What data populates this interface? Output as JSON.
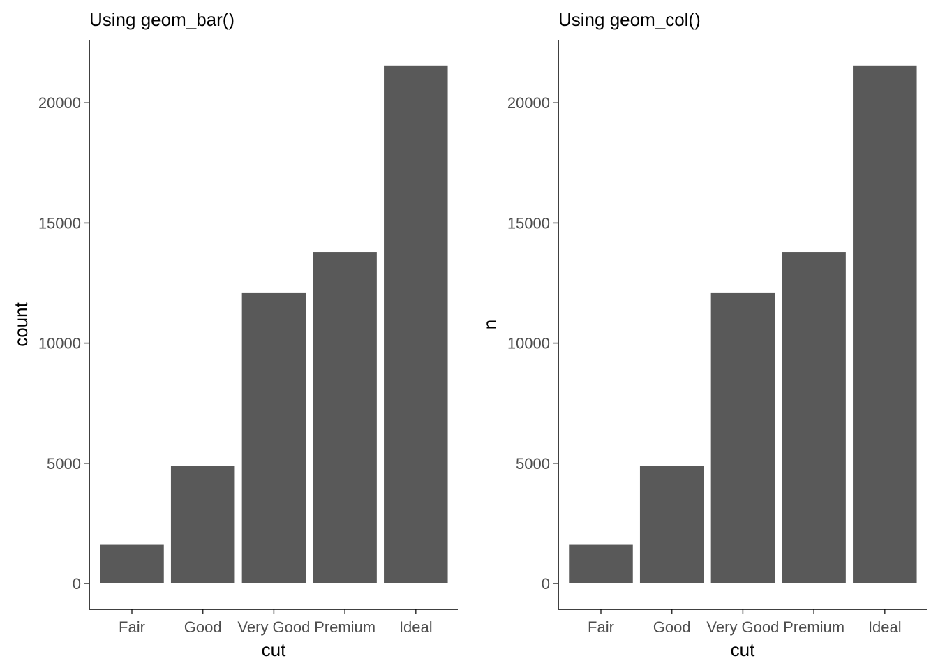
{
  "chart_data": [
    {
      "type": "bar",
      "title": "Using geom_bar()",
      "xlabel": "cut",
      "ylabel": "count",
      "categories": [
        "Fair",
        "Good",
        "Very Good",
        "Premium",
        "Ideal"
      ],
      "values": [
        1610,
        4906,
        12082,
        13791,
        21551
      ],
      "ylim": [
        0,
        22600
      ],
      "yticks": [
        0,
        5000,
        10000,
        15000,
        20000
      ],
      "bar_color": "#595959",
      "grid": false
    },
    {
      "type": "bar",
      "title": "Using geom_col()",
      "xlabel": "cut",
      "ylabel": "n",
      "categories": [
        "Fair",
        "Good",
        "Very Good",
        "Premium",
        "Ideal"
      ],
      "values": [
        1610,
        4906,
        12082,
        13791,
        21551
      ],
      "ylim": [
        0,
        22600
      ],
      "yticks": [
        0,
        5000,
        10000,
        15000,
        20000
      ],
      "bar_color": "#595959",
      "grid": false
    }
  ]
}
